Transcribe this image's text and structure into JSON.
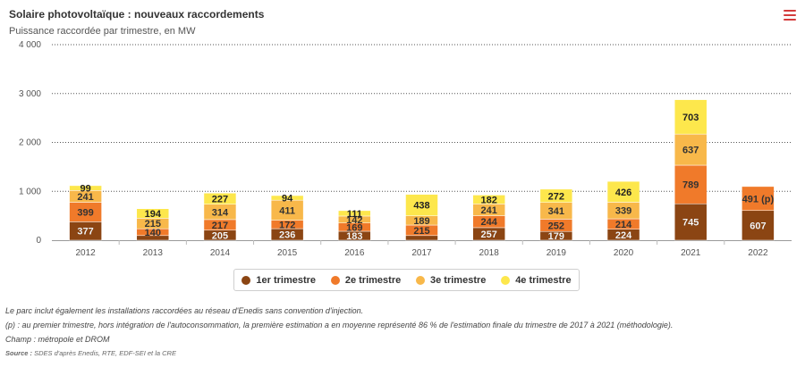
{
  "header": {
    "title": "Solaire photovoltaïque : nouveaux raccordements",
    "subtitle": "Puissance raccordée par trimestre, en MW"
  },
  "menu": {
    "icon": "hamburger-menu-icon",
    "color": "#d43c3c"
  },
  "chart_data": {
    "type": "bar",
    "stacked": true,
    "title": "Solaire photovoltaïque : nouveaux raccordements",
    "subtitle": "Puissance raccordée par trimestre, en MW",
    "categories": [
      "2012",
      "2013",
      "2014",
      "2015",
      "2016",
      "2017",
      "2018",
      "2019",
      "2020",
      "2021",
      "2022"
    ],
    "ylim": [
      0,
      4000
    ],
    "yticks": [
      0,
      1000,
      2000,
      3000,
      4000
    ],
    "ytick_labels": [
      "0",
      "1 000",
      "2 000",
      "3 000",
      "4 000"
    ],
    "grid": true,
    "legend_position": "bottom-center",
    "series": [
      {
        "name": "1er trimestre",
        "color": "#8b4513",
        "values": [
          377,
          95,
          205,
          236,
          183,
          95,
          257,
          179,
          224,
          745,
          607
        ],
        "labels": [
          "377",
          "",
          "205",
          "236",
          "183",
          "",
          "257",
          "179",
          "224",
          "745",
          "607"
        ]
      },
      {
        "name": "2e trimestre",
        "color": "#f07a2a",
        "values": [
          399,
          140,
          217,
          172,
          169,
          215,
          244,
          252,
          214,
          789,
          491
        ],
        "labels": [
          "399",
          "140",
          "217",
          "172",
          "169",
          "215",
          "244",
          "252",
          "214",
          "789",
          "491 (p)"
        ]
      },
      {
        "name": "3e trimestre",
        "color": "#f8b84a",
        "values": [
          241,
          215,
          314,
          411,
          142,
          189,
          241,
          341,
          339,
          637,
          0
        ],
        "labels": [
          "241",
          "215",
          "314",
          "411",
          "142",
          "189",
          "241",
          "341",
          "339",
          "637",
          ""
        ]
      },
      {
        "name": "4e trimestre",
        "color": "#fde74c",
        "values": [
          99,
          194,
          227,
          94,
          111,
          438,
          182,
          272,
          426,
          703,
          0
        ],
        "labels": [
          "99",
          "194",
          "227",
          "94",
          "111",
          "438",
          "182",
          "272",
          "426",
          "703",
          ""
        ]
      }
    ]
  },
  "notes": {
    "line1": "Le parc inclut également les installations raccordées au réseau d'Enedis sans convention d'injection.",
    "line2": "(p) : au premier trimestre, hors intégration de l'autoconsommation, la première estimation a en moyenne représenté 86 % de l'estimation finale du trimestre de 2017 à 2021 (méthodologie).",
    "line3": "Champ : métropole et DROM",
    "source_label": "Source :",
    "source_text": "SDES d'après Enedis, RTE, EDF-SEI et la CRE"
  }
}
